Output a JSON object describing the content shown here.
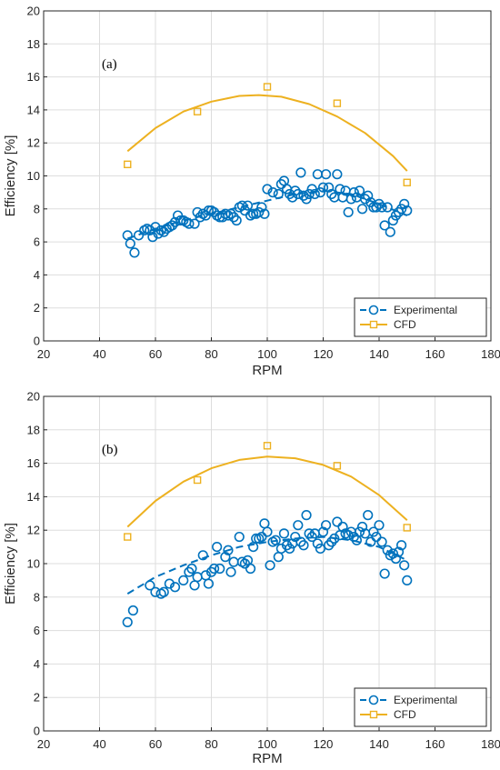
{
  "colors": {
    "experimental": "#0072BD",
    "cfd": "#EDB120",
    "grid": "#dddddd",
    "axis": "#262626"
  },
  "chart_data": [
    {
      "type": "scatter",
      "panel_label": "(a)",
      "xlabel": "RPM",
      "ylabel": "Efficiency [%]",
      "xlim": [
        20,
        180
      ],
      "ylim": [
        0,
        20
      ],
      "xticks": [
        20,
        40,
        60,
        80,
        100,
        120,
        140,
        160,
        180
      ],
      "yticks": [
        0,
        2,
        4,
        6,
        8,
        10,
        12,
        14,
        16,
        18,
        20
      ],
      "grid": true,
      "legend": {
        "placement": "bottom-right",
        "entries": [
          "Experimental",
          "CFD"
        ]
      },
      "series": [
        {
          "name": "Experimental",
          "style": "circle-markers",
          "points": [
            [
              50,
              6.4
            ],
            [
              51,
              5.9
            ],
            [
              52.5,
              5.35
            ],
            [
              54,
              6.4
            ],
            [
              56,
              6.7
            ],
            [
              57,
              6.8
            ],
            [
              58,
              6.7
            ],
            [
              59,
              6.3
            ],
            [
              60,
              6.9
            ],
            [
              61,
              6.5
            ],
            [
              62,
              6.7
            ],
            [
              63,
              6.6
            ],
            [
              64,
              6.8
            ],
            [
              65,
              6.9
            ],
            [
              66,
              7.0
            ],
            [
              67,
              7.2
            ],
            [
              68,
              7.6
            ],
            [
              69,
              7.3
            ],
            [
              70,
              7.3
            ],
            [
              71,
              7.2
            ],
            [
              72,
              7.1
            ],
            [
              74,
              7.1
            ],
            [
              75,
              7.8
            ],
            [
              76,
              7.5
            ],
            [
              77,
              7.7
            ],
            [
              78,
              7.6
            ],
            [
              79,
              7.9
            ],
            [
              80,
              7.9
            ],
            [
              81,
              7.8
            ],
            [
              82,
              7.6
            ],
            [
              83,
              7.5
            ],
            [
              84,
              7.5
            ],
            [
              85,
              7.7
            ],
            [
              86,
              7.6
            ],
            [
              87,
              7.7
            ],
            [
              88,
              7.5
            ],
            [
              89,
              7.3
            ],
            [
              90,
              8.1
            ],
            [
              91,
              8.2
            ],
            [
              92,
              7.9
            ],
            [
              93,
              8.2
            ],
            [
              94,
              7.6
            ],
            [
              95,
              7.7
            ],
            [
              96,
              7.7
            ],
            [
              97,
              7.8
            ],
            [
              98,
              8.1
            ],
            [
              99,
              7.7
            ],
            [
              100,
              9.2
            ],
            [
              102,
              9.0
            ],
            [
              104,
              8.9
            ],
            [
              105,
              9.5
            ],
            [
              106,
              9.7
            ],
            [
              107,
              9.2
            ],
            [
              108,
              8.9
            ],
            [
              109,
              8.7
            ],
            [
              110,
              9.1
            ],
            [
              111,
              8.9
            ],
            [
              112,
              10.2
            ],
            [
              113,
              8.8
            ],
            [
              114,
              8.6
            ],
            [
              115,
              8.9
            ],
            [
              116,
              9.2
            ],
            [
              117,
              8.9
            ],
            [
              118,
              10.1
            ],
            [
              119,
              9.0
            ],
            [
              120,
              9.3
            ],
            [
              121,
              10.1
            ],
            [
              122,
              9.3
            ],
            [
              123,
              8.9
            ],
            [
              124,
              8.7
            ],
            [
              125,
              10.1
            ],
            [
              126,
              9.2
            ],
            [
              127,
              8.7
            ],
            [
              128,
              9.1
            ],
            [
              129,
              7.8
            ],
            [
              130,
              8.6
            ],
            [
              131,
              9.0
            ],
            [
              132,
              8.7
            ],
            [
              133,
              9.1
            ],
            [
              134,
              8.0
            ],
            [
              135,
              8.6
            ],
            [
              136,
              8.8
            ],
            [
              137,
              8.4
            ],
            [
              138,
              8.1
            ],
            [
              139,
              8.1
            ],
            [
              140,
              8.3
            ],
            [
              141,
              8.1
            ],
            [
              142,
              7.0
            ],
            [
              143,
              8.1
            ],
            [
              144,
              6.6
            ],
            [
              145,
              7.3
            ],
            [
              146,
              7.6
            ],
            [
              147,
              7.8
            ],
            [
              148,
              8.0
            ],
            [
              149,
              8.3
            ],
            [
              150,
              7.9
            ]
          ],
          "trend": [
            [
              50,
              6.2
            ],
            [
              60,
              6.8
            ],
            [
              70,
              7.3
            ],
            [
              80,
              7.7
            ],
            [
              90,
              8.1
            ],
            [
              100,
              8.5
            ],
            [
              110,
              8.9
            ],
            [
              120,
              9.1
            ],
            [
              130,
              8.9
            ],
            [
              140,
              8.3
            ],
            [
              150,
              7.6
            ]
          ]
        },
        {
          "name": "CFD",
          "style": "square-markers-with-fit",
          "points": [
            [
              50,
              10.7
            ],
            [
              75,
              13.9
            ],
            [
              100,
              15.4
            ],
            [
              125,
              14.4
            ],
            [
              150,
              9.6
            ]
          ],
          "fit": [
            [
              50,
              11.5
            ],
            [
              60,
              12.9
            ],
            [
              70,
              13.9
            ],
            [
              80,
              14.5
            ],
            [
              90,
              14.85
            ],
            [
              97,
              14.9
            ],
            [
              105,
              14.8
            ],
            [
              115,
              14.35
            ],
            [
              125,
              13.6
            ],
            [
              135,
              12.6
            ],
            [
              145,
              11.2
            ],
            [
              150,
              10.3
            ]
          ]
        }
      ]
    },
    {
      "type": "scatter",
      "panel_label": "(b)",
      "xlabel": "RPM",
      "ylabel": "Efficiency [%]",
      "xlim": [
        20,
        180
      ],
      "ylim": [
        0,
        20
      ],
      "xticks": [
        20,
        40,
        60,
        80,
        100,
        120,
        140,
        160,
        180
      ],
      "yticks": [
        0,
        2,
        4,
        6,
        8,
        10,
        12,
        14,
        16,
        18,
        20
      ],
      "grid": true,
      "legend": {
        "placement": "bottom-right",
        "entries": [
          "Experimental",
          "CFD"
        ]
      },
      "series": [
        {
          "name": "Experimental",
          "style": "circle-markers",
          "points": [
            [
              50,
              6.5
            ],
            [
              52,
              7.2
            ],
            [
              58,
              8.7
            ],
            [
              60,
              8.3
            ],
            [
              62,
              8.2
            ],
            [
              63,
              8.3
            ],
            [
              65,
              8.8
            ],
            [
              67,
              8.6
            ],
            [
              70,
              9.0
            ],
            [
              72,
              9.5
            ],
            [
              73,
              9.7
            ],
            [
              74,
              8.7
            ],
            [
              75,
              9.2
            ],
            [
              77,
              10.5
            ],
            [
              78,
              9.3
            ],
            [
              79,
              8.8
            ],
            [
              80,
              9.5
            ],
            [
              81,
              9.7
            ],
            [
              82,
              11.0
            ],
            [
              83,
              9.7
            ],
            [
              85,
              10.4
            ],
            [
              86,
              10.8
            ],
            [
              87,
              9.5
            ],
            [
              88,
              10.1
            ],
            [
              90,
              11.6
            ],
            [
              91,
              10.1
            ],
            [
              92,
              10.0
            ],
            [
              93,
              10.2
            ],
            [
              94,
              9.7
            ],
            [
              95,
              11.0
            ],
            [
              96,
              11.5
            ],
            [
              97,
              11.5
            ],
            [
              98,
              11.6
            ],
            [
              99,
              12.4
            ],
            [
              100,
              11.9
            ],
            [
              101,
              9.9
            ],
            [
              102,
              11.3
            ],
            [
              103,
              11.4
            ],
            [
              104,
              10.4
            ],
            [
              105,
              10.9
            ],
            [
              106,
              11.8
            ],
            [
              107,
              11.1
            ],
            [
              108,
              10.9
            ],
            [
              109,
              11.2
            ],
            [
              110,
              11.6
            ],
            [
              111,
              12.3
            ],
            [
              112,
              11.3
            ],
            [
              113,
              11.1
            ],
            [
              114,
              12.9
            ],
            [
              115,
              11.8
            ],
            [
              116,
              11.6
            ],
            [
              117,
              11.8
            ],
            [
              118,
              11.2
            ],
            [
              119,
              10.9
            ],
            [
              120,
              11.9
            ],
            [
              121,
              12.3
            ],
            [
              122,
              11.1
            ],
            [
              123,
              11.3
            ],
            [
              124,
              11.5
            ],
            [
              125,
              12.5
            ],
            [
              126,
              11.7
            ],
            [
              127,
              12.2
            ],
            [
              128,
              11.8
            ],
            [
              129,
              11.7
            ],
            [
              130,
              11.9
            ],
            [
              131,
              11.6
            ],
            [
              132,
              11.4
            ],
            [
              133,
              11.9
            ],
            [
              134,
              12.2
            ],
            [
              135,
              11.8
            ],
            [
              136,
              12.9
            ],
            [
              137,
              11.3
            ],
            [
              138,
              11.9
            ],
            [
              139,
              11.6
            ],
            [
              140,
              12.3
            ],
            [
              141,
              11.3
            ],
            [
              142,
              9.4
            ],
            [
              143,
              10.8
            ],
            [
              144,
              10.5
            ],
            [
              145,
              10.6
            ],
            [
              146,
              10.3
            ],
            [
              147,
              10.7
            ],
            [
              148,
              11.1
            ],
            [
              149,
              9.9
            ],
            [
              150,
              9.0
            ]
          ],
          "trend": [
            [
              50,
              8.2
            ],
            [
              60,
              9.2
            ],
            [
              70,
              9.9
            ],
            [
              80,
              10.5
            ],
            [
              90,
              11.0
            ],
            [
              100,
              11.3
            ],
            [
              110,
              11.5
            ],
            [
              120,
              11.6
            ],
            [
              130,
              11.4
            ],
            [
              140,
              11.0
            ],
            [
              150,
              10.2
            ]
          ]
        },
        {
          "name": "CFD",
          "style": "square-markers-with-fit",
          "points": [
            [
              50,
              11.6
            ],
            [
              75,
              15.0
            ],
            [
              100,
              17.05
            ],
            [
              125,
              15.85
            ],
            [
              150,
              12.15
            ]
          ],
          "fit": [
            [
              50,
              12.2
            ],
            [
              60,
              13.75
            ],
            [
              70,
              14.9
            ],
            [
              80,
              15.7
            ],
            [
              90,
              16.2
            ],
            [
              100,
              16.4
            ],
            [
              110,
              16.3
            ],
            [
              120,
              15.9
            ],
            [
              130,
              15.2
            ],
            [
              140,
              14.1
            ],
            [
              150,
              12.6
            ]
          ]
        }
      ]
    }
  ]
}
